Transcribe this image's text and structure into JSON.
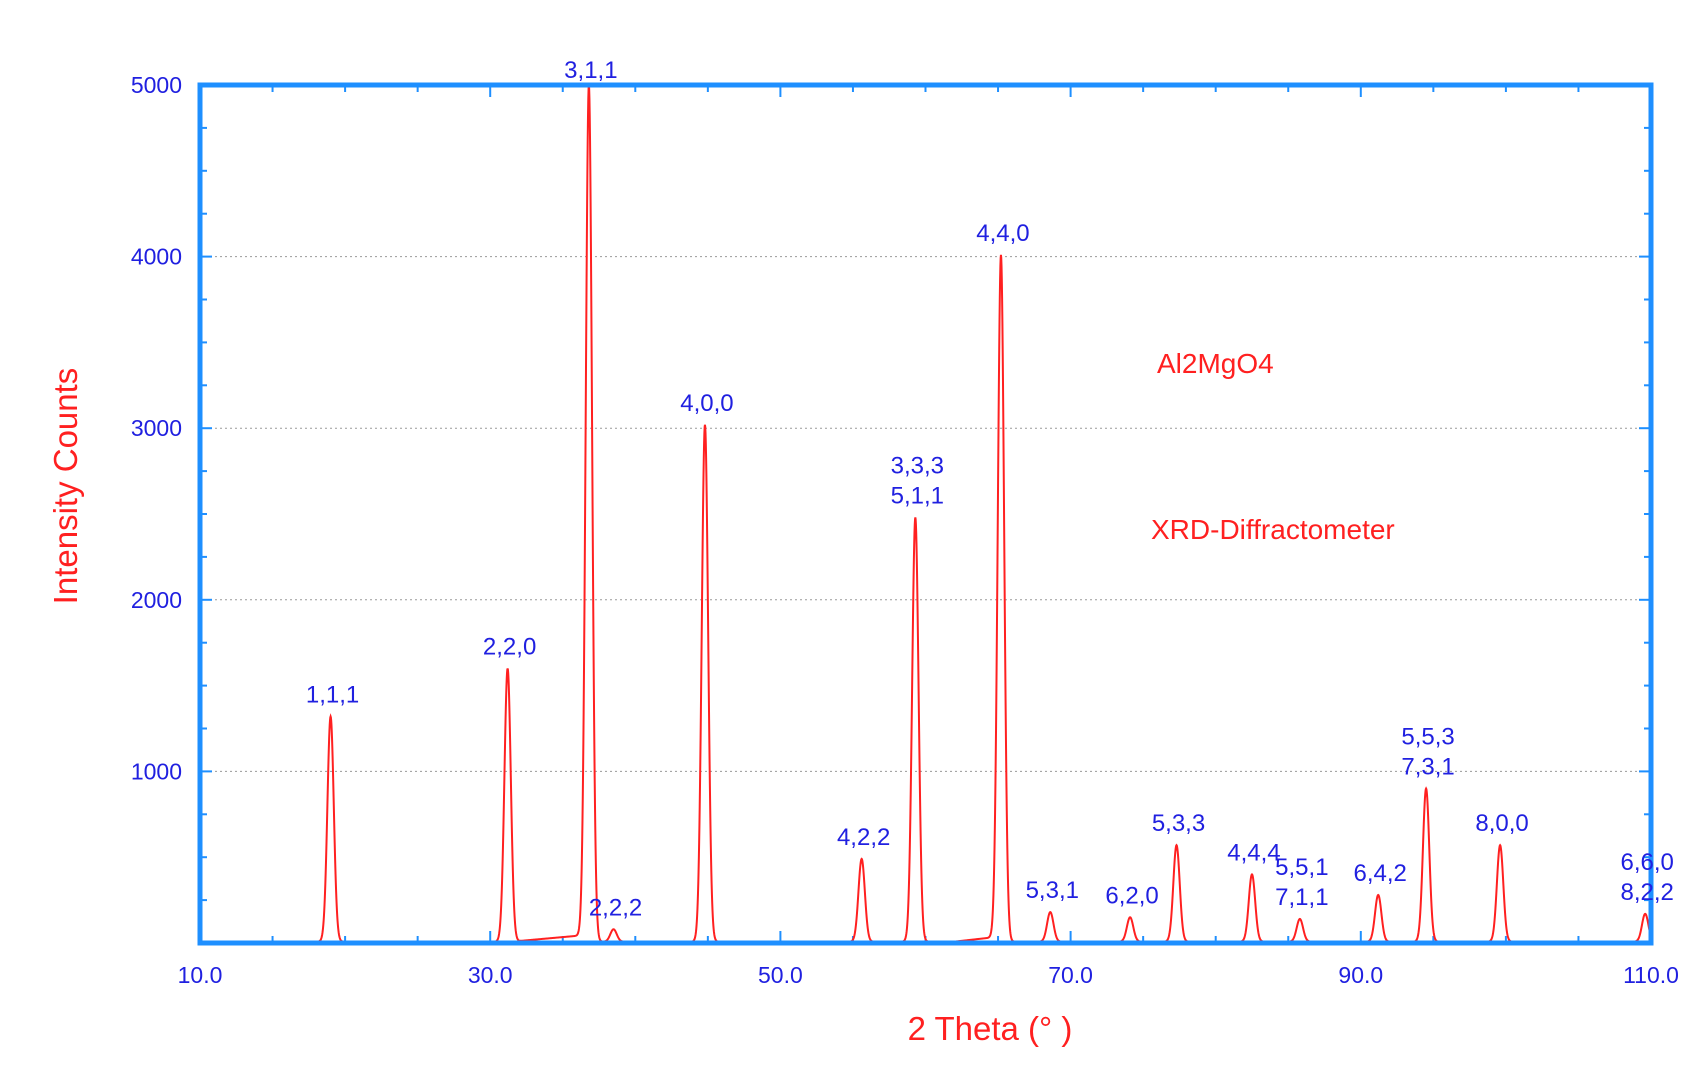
{
  "chart_data": {
    "type": "line",
    "title": "",
    "xlabel": "2 Theta (° )",
    "ylabel": "Intensity Counts",
    "xlim": [
      10,
      110
    ],
    "ylim": [
      0,
      5000
    ],
    "x_ticks": [
      10,
      30,
      50,
      70,
      90,
      110
    ],
    "x_tick_labels": [
      "10.0",
      "30.0",
      "50.0",
      "70.0",
      "90.0",
      "110.0"
    ],
    "y_ticks": [
      1000,
      2000,
      3000,
      4000,
      5000
    ],
    "y_tick_labels": [
      "1000",
      "2000",
      "3000",
      "4000",
      "5000"
    ],
    "grid": "horizontal-dotted",
    "annotations": [
      "Al2MgO4",
      "XRD-Diffractometer"
    ],
    "colors": {
      "line": "#ff2020",
      "frame": "#1e8fff",
      "labels": "#2020e0",
      "titles": "#ff2020"
    },
    "peaks": [
      {
        "x": 19.0,
        "y": 1320,
        "label": [
          "1,1,1"
        ]
      },
      {
        "x": 31.2,
        "y": 1600,
        "label": [
          "2,2,0"
        ]
      },
      {
        "x": 36.8,
        "y": 5000,
        "label": [
          "3,1,1"
        ]
      },
      {
        "x": 38.5,
        "y": 80,
        "label": [
          "2,2,2"
        ]
      },
      {
        "x": 44.8,
        "y": 3020,
        "label": [
          "4,0,0"
        ]
      },
      {
        "x": 55.6,
        "y": 490,
        "label": [
          "4,2,2"
        ]
      },
      {
        "x": 59.3,
        "y": 2480,
        "label": [
          "3,3,3",
          "5,1,1"
        ]
      },
      {
        "x": 65.2,
        "y": 4010,
        "label": [
          "4,4,0"
        ]
      },
      {
        "x": 68.6,
        "y": 180,
        "label": [
          "5,3,1"
        ]
      },
      {
        "x": 74.1,
        "y": 150,
        "label": [
          "6,2,0"
        ]
      },
      {
        "x": 77.3,
        "y": 570,
        "label": [
          "5,3,3"
        ]
      },
      {
        "x": 82.5,
        "y": 400,
        "label": [
          "4,4,4"
        ]
      },
      {
        "x": 85.8,
        "y": 140,
        "label": [
          "5,5,1",
          "7,1,1"
        ]
      },
      {
        "x": 91.2,
        "y": 280,
        "label": [
          "6,4,2"
        ]
      },
      {
        "x": 94.5,
        "y": 900,
        "label": [
          "5,5,3",
          "7,3,1"
        ]
      },
      {
        "x": 99.6,
        "y": 570,
        "label": [
          "8,0,0"
        ]
      },
      {
        "x": 109.6,
        "y": 170,
        "label": [
          "6,6,0",
          "8,2,2"
        ]
      }
    ]
  }
}
